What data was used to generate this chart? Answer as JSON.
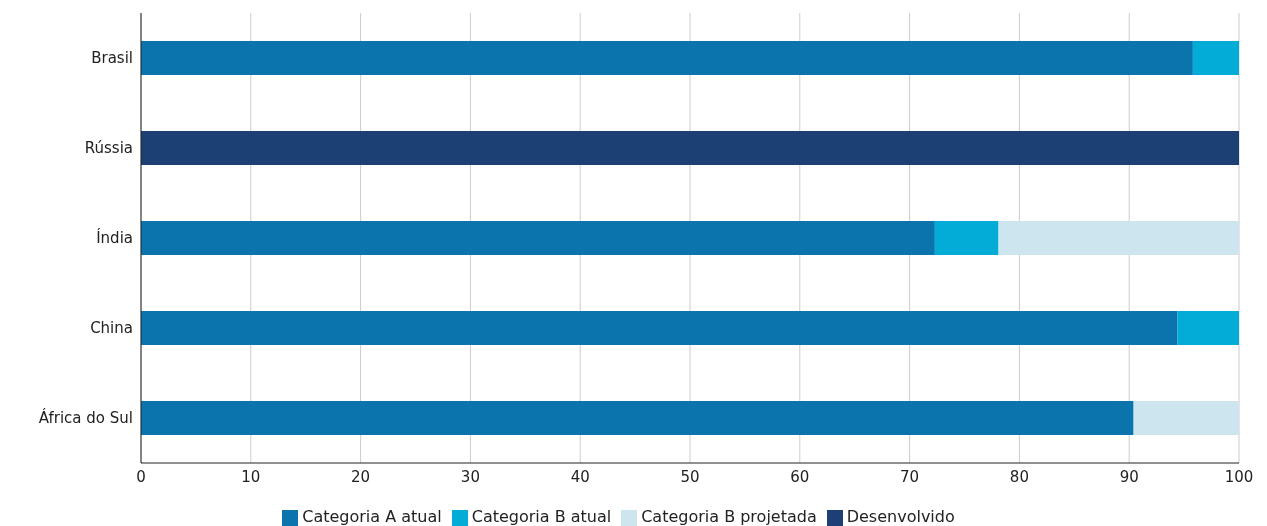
{
  "chart_data": {
    "type": "bar",
    "orientation": "horizontal",
    "stacked": true,
    "categories": [
      "Brasil",
      "Rússia",
      "Índia",
      "China",
      "África do Sul"
    ],
    "series": [
      {
        "name": "Desenvolvido",
        "color": "#1c3f74",
        "values": [
          null,
          100,
          null,
          null,
          null
        ]
      },
      {
        "name": "Categoria A atual",
        "color": "#0b74ad",
        "values": [
          95.8,
          null,
          72.3,
          94.4,
          90.4
        ]
      },
      {
        "name": "Categoria B atual",
        "color": "#03acd6",
        "values": [
          4.2,
          null,
          5.8,
          5.6,
          null
        ]
      },
      {
        "name": "Categoria B projetada",
        "color": "#cce5ee",
        "values": [
          null,
          null,
          21.9,
          null,
          9.6
        ]
      }
    ],
    "xlim": [
      0,
      100
    ],
    "xticks": [
      0,
      10,
      20,
      30,
      40,
      50,
      60,
      70,
      80,
      90,
      100
    ],
    "grid": "x",
    "legend": "bottom"
  }
}
